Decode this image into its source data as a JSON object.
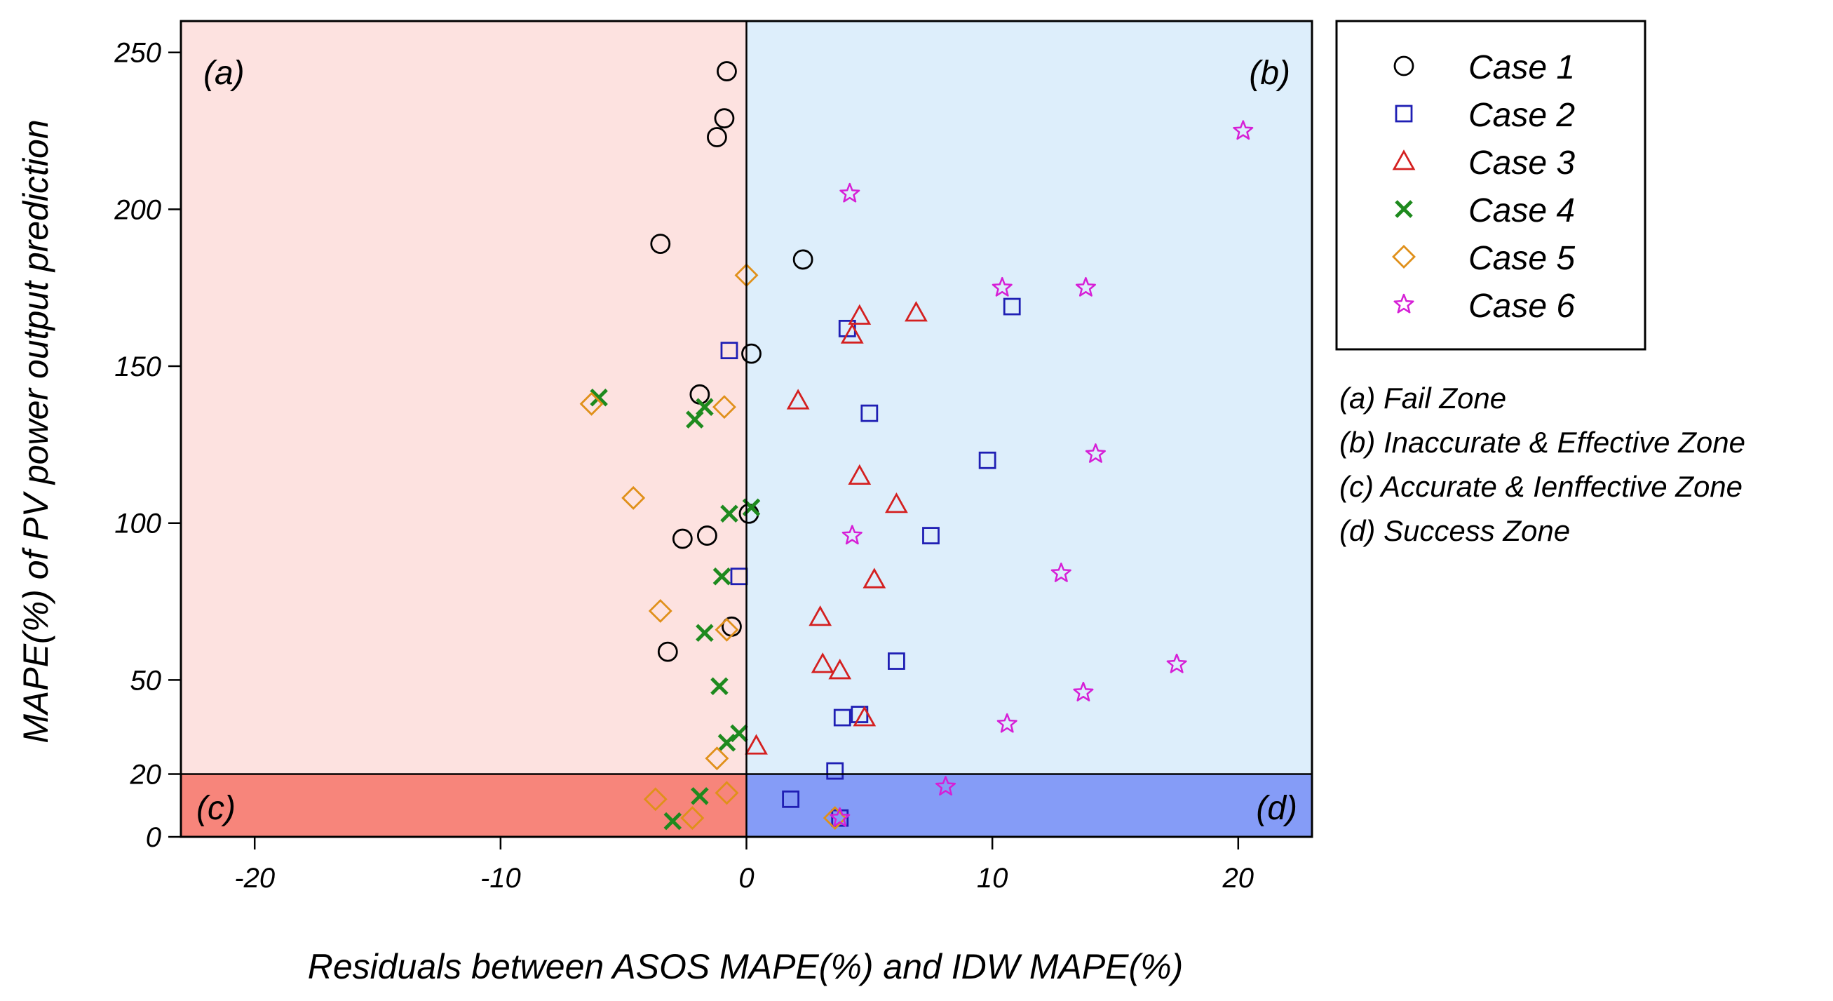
{
  "chart_data": {
    "type": "scatter",
    "xlabel": "Residuals between ASOS MAPE(%) and IDW MAPE(%)",
    "ylabel": "MAPE(%) of PV power output prediction",
    "xlim": [
      -23,
      23
    ],
    "ylim": [
      0,
      260
    ],
    "x_ticks": [
      -20,
      -10,
      0,
      10,
      20
    ],
    "y_ticks": [
      0,
      20,
      50,
      100,
      150,
      200,
      250
    ],
    "x_tick_labels": [
      "-20",
      "-10",
      "0",
      "10",
      "20"
    ],
    "y_tick_labels": [
      "0",
      "20",
      "50",
      "100",
      "150",
      "200",
      "250"
    ],
    "x_divider": 0,
    "y_divider": 20,
    "zones": [
      {
        "label": "(a)",
        "quadrant": "top-left",
        "color": "#fde2e0"
      },
      {
        "label": "(b)",
        "quadrant": "top-right",
        "color": "#ddeefb"
      },
      {
        "label": "(c)",
        "quadrant": "bottom-left",
        "color": "#f7857b"
      },
      {
        "label": "(d)",
        "quadrant": "bottom-right",
        "color": "#859cf7"
      }
    ],
    "zone_notes": [
      "(a) Fail Zone",
      "(b) Inaccurate & Effective Zone",
      "(c) Accurate & Ienffective Zone",
      "(d) Success Zone"
    ],
    "legend_position": "right",
    "grid": false,
    "series": [
      {
        "name": "Case 1",
        "marker": "circle",
        "color": "#000000",
        "points": [
          [
            -0.8,
            244
          ],
          [
            -0.9,
            229
          ],
          [
            -1.2,
            223
          ],
          [
            -3.5,
            189
          ],
          [
            2.3,
            184
          ],
          [
            0.2,
            154
          ],
          [
            -1.9,
            141
          ],
          [
            0.1,
            103
          ],
          [
            -2.6,
            95
          ],
          [
            -1.6,
            96
          ],
          [
            -0.6,
            67
          ],
          [
            -3.2,
            59
          ]
        ]
      },
      {
        "name": "Case 2",
        "marker": "square",
        "color": "#1f1fb4",
        "points": [
          [
            10.8,
            169
          ],
          [
            4.1,
            162
          ],
          [
            -0.7,
            155
          ],
          [
            5.0,
            135
          ],
          [
            9.8,
            120
          ],
          [
            7.5,
            96
          ],
          [
            -0.3,
            83
          ],
          [
            6.1,
            56
          ],
          [
            3.9,
            38
          ],
          [
            4.6,
            39
          ],
          [
            3.6,
            21
          ],
          [
            1.8,
            12
          ],
          [
            3.8,
            6
          ]
        ]
      },
      {
        "name": "Case 3",
        "marker": "triangle",
        "color": "#d42020",
        "points": [
          [
            4.6,
            166
          ],
          [
            6.9,
            167
          ],
          [
            4.3,
            160
          ],
          [
            2.1,
            139
          ],
          [
            4.6,
            115
          ],
          [
            6.1,
            106
          ],
          [
            5.2,
            82
          ],
          [
            3.0,
            70
          ],
          [
            3.1,
            55
          ],
          [
            3.8,
            53
          ],
          [
            4.8,
            38
          ],
          [
            0.4,
            29
          ]
        ]
      },
      {
        "name": "Case 4",
        "marker": "cross",
        "color": "#1e8a1e",
        "points": [
          [
            -6.0,
            140
          ],
          [
            -1.7,
            137
          ],
          [
            -2.1,
            133
          ],
          [
            0.2,
            105
          ],
          [
            -0.7,
            103
          ],
          [
            -1.0,
            83
          ],
          [
            -1.7,
            65
          ],
          [
            -1.1,
            48
          ],
          [
            -0.3,
            33
          ],
          [
            -0.8,
            30
          ],
          [
            -1.9,
            13
          ],
          [
            -3.0,
            5
          ]
        ]
      },
      {
        "name": "Case 5",
        "marker": "diamond",
        "color": "#e0901a",
        "points": [
          [
            0,
            179
          ],
          [
            -6.3,
            138
          ],
          [
            -0.9,
            137
          ],
          [
            -4.6,
            108
          ],
          [
            -3.5,
            72
          ],
          [
            -0.8,
            66
          ],
          [
            -1.2,
            25
          ],
          [
            -3.7,
            12
          ],
          [
            -0.8,
            14
          ],
          [
            -2.2,
            6
          ],
          [
            3.6,
            6
          ]
        ]
      },
      {
        "name": "Case 6",
        "marker": "star",
        "color": "#d61fd6",
        "points": [
          [
            20.2,
            225
          ],
          [
            4.2,
            205
          ],
          [
            10.4,
            175
          ],
          [
            13.8,
            175
          ],
          [
            14.2,
            122
          ],
          [
            4.3,
            96
          ],
          [
            12.8,
            84
          ],
          [
            17.5,
            55
          ],
          [
            13.7,
            46
          ],
          [
            10.6,
            36
          ],
          [
            8.1,
            16
          ],
          [
            3.8,
            6
          ]
        ]
      }
    ]
  }
}
